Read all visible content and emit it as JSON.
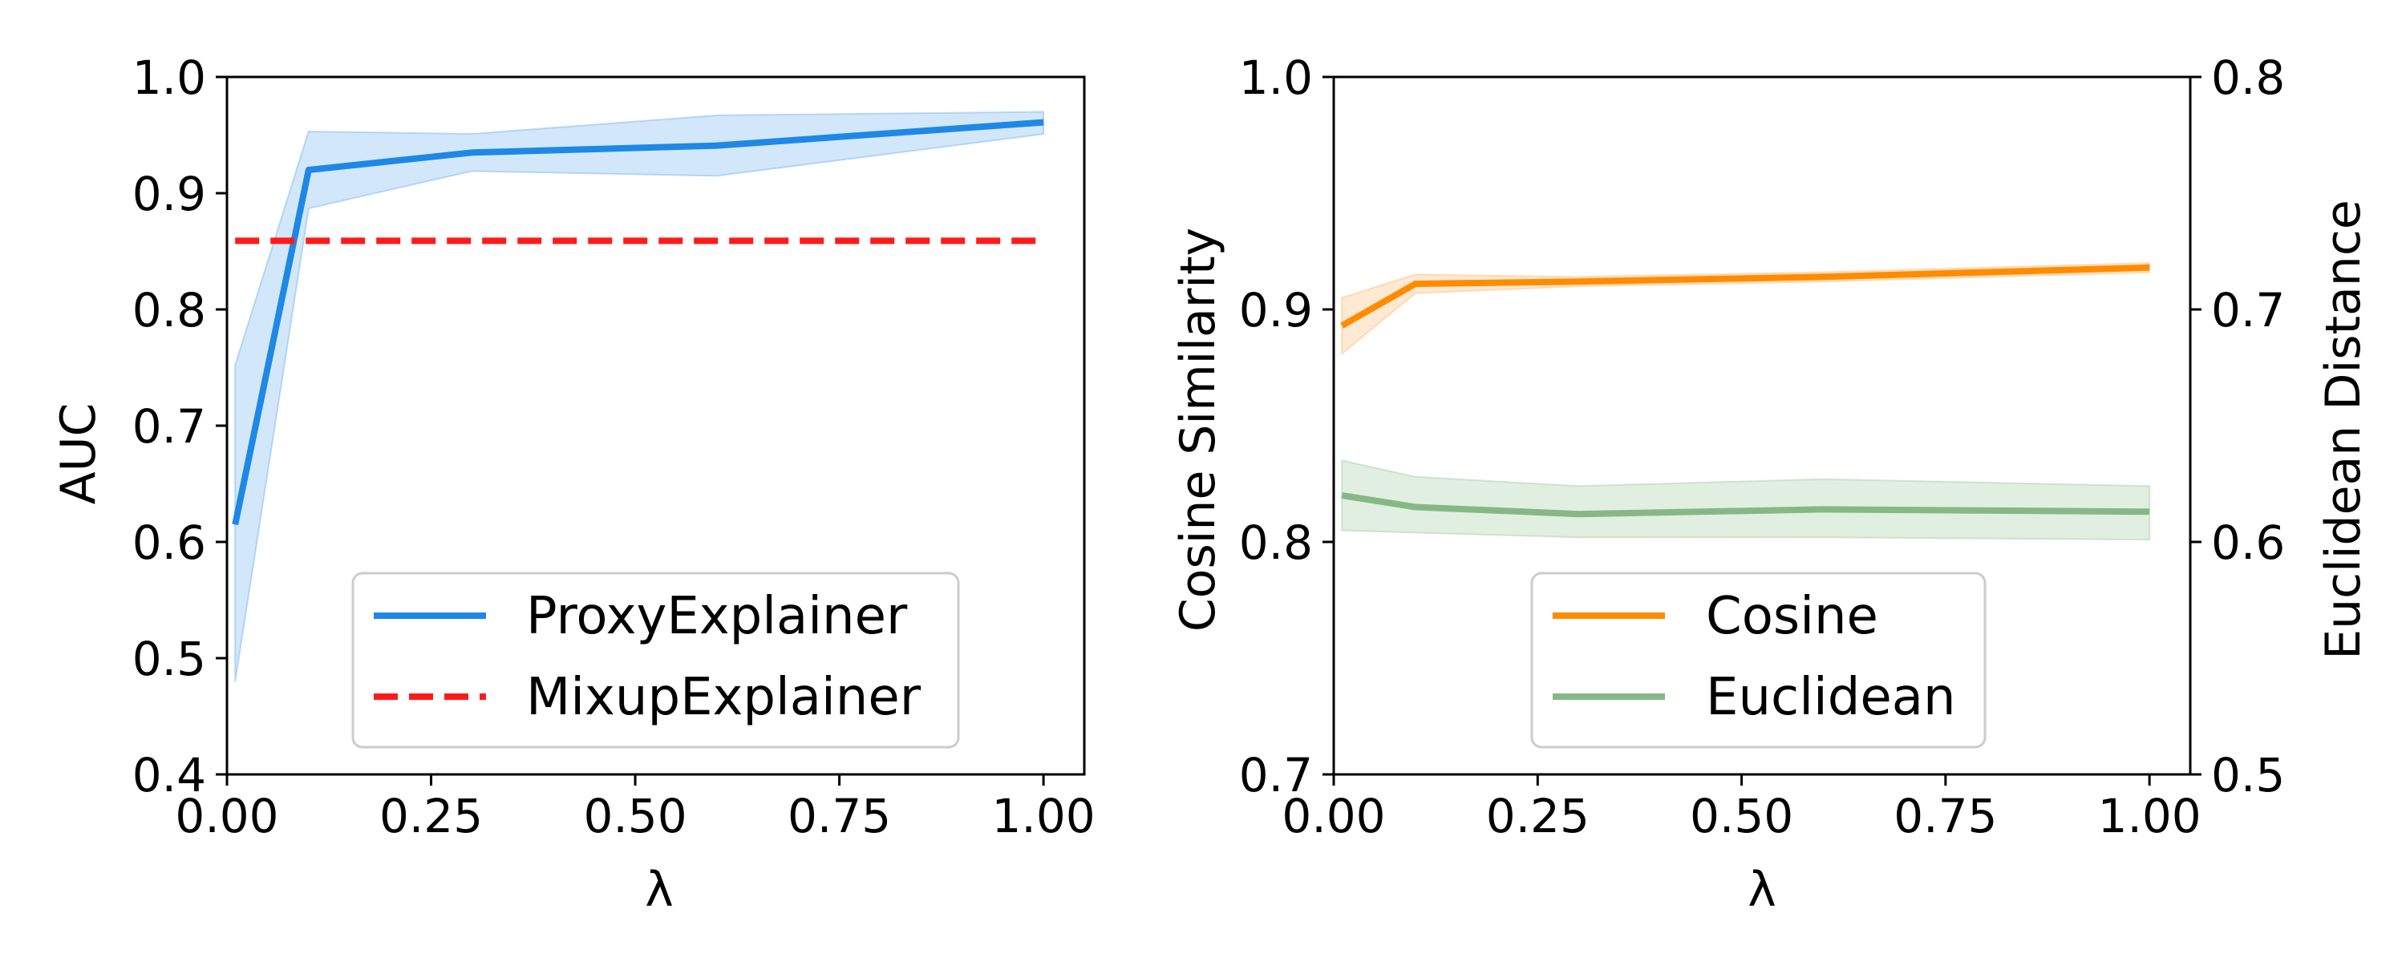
{
  "chart_data": [
    {
      "type": "line",
      "xlabel": "λ",
      "ylabel": "AUC",
      "xlim": [
        0.0,
        1.05
      ],
      "ylim": [
        0.4,
        1.0
      ],
      "xticks": [
        0.0,
        0.25,
        0.5,
        0.75,
        1.0
      ],
      "xtick_labels": [
        "0.00",
        "0.25",
        "0.50",
        "0.75",
        "1.00"
      ],
      "yticks": [
        0.4,
        0.5,
        0.6,
        0.7,
        0.8,
        0.9,
        1.0
      ],
      "ytick_labels": [
        "0.4",
        "0.5",
        "0.6",
        "0.7",
        "0.8",
        "0.9",
        "1.0"
      ],
      "grid": false,
      "legend_position": "lower-right",
      "series": [
        {
          "name": "ProxyExplainer",
          "color": "#1e88e5",
          "band_color": "#90c2f2",
          "style": "solid",
          "x": [
            0.01,
            0.1,
            0.3,
            0.6,
            1.0
          ],
          "y": [
            0.615,
            0.92,
            0.935,
            0.941,
            0.961
          ],
          "lower": [
            0.48,
            0.887,
            0.919,
            0.915,
            0.951
          ],
          "upper": [
            0.752,
            0.953,
            0.951,
            0.967,
            0.97
          ]
        },
        {
          "name": "MixupExplainer",
          "color": "#ff1a1a",
          "style": "dashed",
          "x": [
            0.01,
            1.0
          ],
          "y": [
            0.859,
            0.859
          ]
        }
      ]
    },
    {
      "type": "line",
      "xlabel": "λ",
      "ylabel": "Cosine Similarity",
      "y2label": "Euclidean Distance",
      "xlim": [
        0.0,
        1.05
      ],
      "ylim": [
        0.7,
        1.0
      ],
      "y2lim": [
        0.5,
        0.8
      ],
      "xticks": [
        0.0,
        0.25,
        0.5,
        0.75,
        1.0
      ],
      "xtick_labels": [
        "0.00",
        "0.25",
        "0.50",
        "0.75",
        "1.00"
      ],
      "yticks": [
        0.7,
        0.8,
        0.9,
        1.0
      ],
      "ytick_labels": [
        "0.7",
        "0.8",
        "0.9",
        "1.0"
      ],
      "y2ticks": [
        0.5,
        0.6,
        0.7,
        0.8
      ],
      "y2tick_labels": [
        "0.5",
        "0.6",
        "0.7",
        "0.8"
      ],
      "grid": false,
      "legend_position": "lower-center",
      "series": [
        {
          "name": "Cosine",
          "axis": "left",
          "color": "#ff8c00",
          "band_color": "#ffc890",
          "style": "solid",
          "x": [
            0.01,
            0.1,
            0.3,
            0.6,
            1.0
          ],
          "y": [
            0.893,
            0.911,
            0.912,
            0.914,
            0.918
          ],
          "lower": [
            0.881,
            0.907,
            0.91,
            0.912,
            0.916
          ],
          "upper": [
            0.905,
            0.915,
            0.914,
            0.916,
            0.92
          ]
        },
        {
          "name": "Euclidean",
          "axis": "right",
          "color": "#86b886",
          "band_color": "#b5d6b5",
          "style": "solid",
          "x": [
            0.01,
            0.1,
            0.3,
            0.6,
            1.0
          ],
          "y": [
            0.62,
            0.615,
            0.612,
            0.614,
            0.613
          ],
          "lower": [
            0.605,
            0.604,
            0.602,
            0.602,
            0.601
          ],
          "upper": [
            0.635,
            0.628,
            0.624,
            0.627,
            0.624
          ]
        }
      ]
    }
  ]
}
